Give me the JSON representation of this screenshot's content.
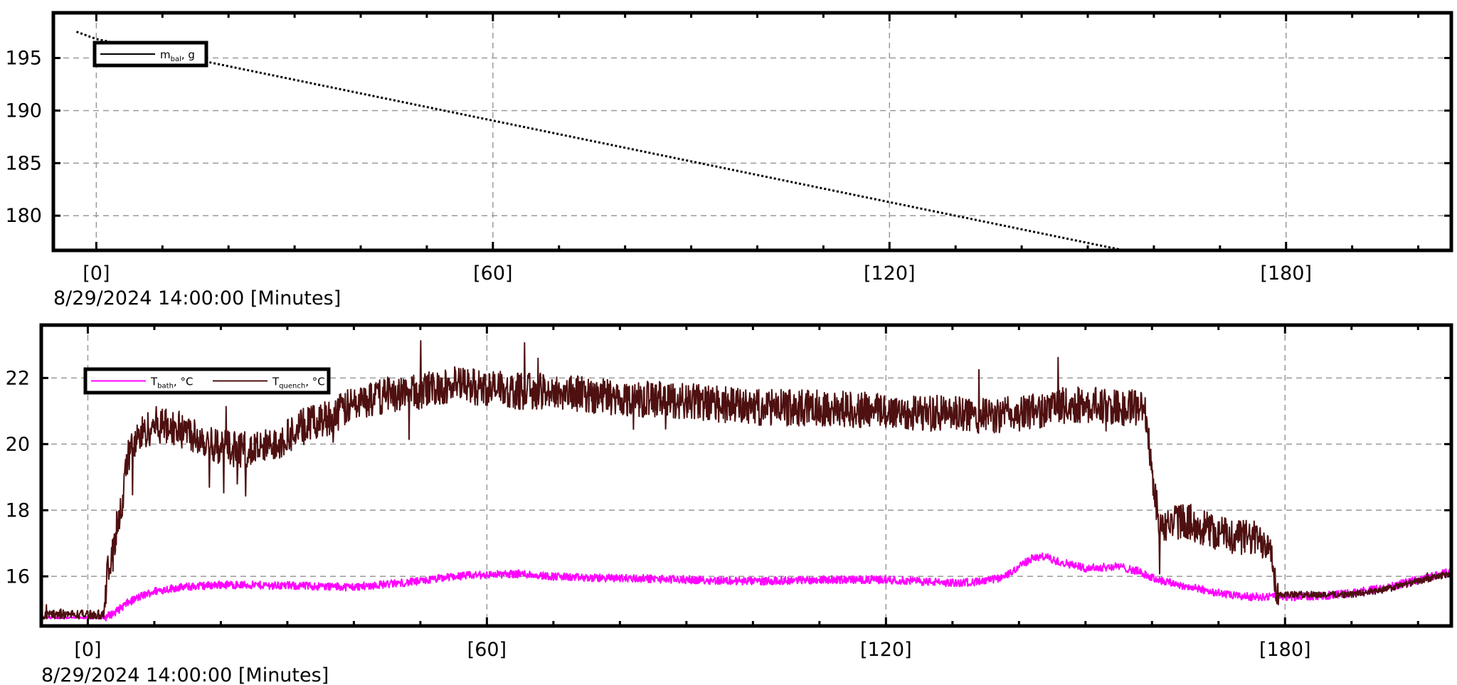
{
  "chart_data": [
    {
      "type": "line",
      "x_axis": {
        "ticks": [
          0,
          60,
          120,
          180
        ],
        "tick_labels": [
          "[0]",
          "[60]",
          "[120]",
          "[180]"
        ],
        "range": [
          -6.5,
          205
        ],
        "caption": "8/29/2024 14:00:00 [Minutes]"
      },
      "y_axis": {
        "ticks": [
          180,
          185,
          190,
          195
        ],
        "range": [
          176.7,
          199.3
        ]
      },
      "grid": true,
      "legend": {
        "position": "top-left",
        "entries": [
          {
            "main": "m",
            "sub": "bal",
            "unit": ", g"
          }
        ]
      },
      "series": [
        {
          "label": "m_bal, g",
          "color": "#000000",
          "dash": "dotted",
          "x": [
            -3,
            0,
            155.5
          ],
          "y": [
            197.5,
            196.8,
            176.7
          ]
        }
      ]
    },
    {
      "type": "line",
      "x_axis": {
        "ticks": [
          0,
          60,
          120,
          180
        ],
        "tick_labels": [
          "[0]",
          "[60]",
          "[120]",
          "[180]"
        ],
        "range": [
          -7,
          205
        ],
        "caption": "8/29/2024 14:00:00 [Minutes]"
      },
      "y_axis": {
        "ticks": [
          16,
          18,
          20,
          22
        ],
        "range": [
          14.5,
          23.6
        ]
      },
      "grid": true,
      "legend": {
        "position": "top-left",
        "entries": [
          {
            "main": "T",
            "sub": "bath",
            "unit": ", °C"
          },
          {
            "main": "T",
            "sub": "quench",
            "unit": ", °C"
          }
        ]
      },
      "series": [
        {
          "label": "T_bath, °C",
          "color": "#ff00ff",
          "x": [
            -7,
            2.5,
            4,
            6,
            8,
            10,
            13,
            16,
            20,
            30,
            40,
            50,
            55,
            60,
            65,
            70,
            75,
            80,
            90,
            100,
            110,
            120,
            125,
            130,
            135,
            138,
            140,
            142,
            144,
            145,
            147,
            150,
            155,
            158,
            160,
            165,
            170,
            172,
            175,
            180,
            185,
            190,
            195,
            200,
            205
          ],
          "y": [
            14.75,
            14.75,
            14.9,
            15.2,
            15.4,
            15.55,
            15.65,
            15.7,
            15.75,
            15.72,
            15.68,
            15.85,
            16.0,
            16.05,
            16.08,
            16.0,
            15.95,
            15.95,
            15.9,
            15.85,
            15.9,
            15.9,
            15.85,
            15.8,
            15.85,
            16.0,
            16.3,
            16.55,
            16.6,
            16.5,
            16.4,
            16.25,
            16.3,
            16.15,
            15.95,
            15.7,
            15.5,
            15.42,
            15.38,
            15.38,
            15.4,
            15.5,
            15.65,
            15.9,
            16.15
          ],
          "noise": 0.12
        },
        {
          "label": "T_quench, °C",
          "color": "#4e1010",
          "x": [
            -7,
            2.5,
            3,
            3.8,
            4.5,
            5,
            6,
            7,
            8,
            10,
            15,
            20,
            25,
            28,
            32,
            36,
            40,
            45,
            50,
            55,
            60,
            65,
            70,
            80,
            90,
            100,
            110,
            120,
            130,
            135,
            140,
            145,
            150,
            155,
            159,
            160,
            161,
            162,
            163,
            165,
            170,
            175,
            178,
            178.5,
            179,
            182,
            185,
            190,
            195,
            200,
            205
          ],
          "y": [
            14.85,
            14.85,
            16.2,
            16.6,
            17.8,
            18.0,
            19.6,
            20.0,
            20.3,
            20.6,
            20.4,
            19.9,
            19.8,
            20.0,
            20.5,
            20.8,
            21.2,
            21.5,
            21.6,
            21.8,
            21.7,
            21.6,
            21.6,
            21.4,
            21.3,
            21.1,
            21.1,
            21.0,
            20.9,
            20.85,
            20.9,
            21.1,
            21.2,
            21.1,
            21.1,
            19.0,
            17.8,
            17.5,
            17.6,
            17.7,
            17.3,
            17.15,
            17.0,
            15.8,
            15.45,
            15.45,
            15.45,
            15.45,
            15.6,
            15.85,
            16.1
          ],
          "noise": 0.55
        }
      ]
    }
  ]
}
